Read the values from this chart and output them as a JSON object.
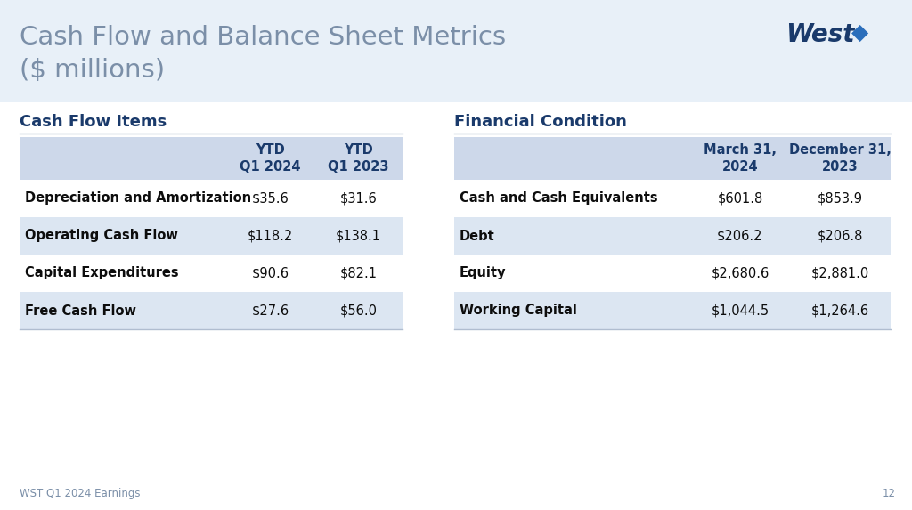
{
  "title_line1": "Cash Flow and Balance Sheet Metrics",
  "title_line2": "($ millions)",
  "title_color": "#7b8fa8",
  "title_fontsize": 21,
  "bg_color": "#ffffff",
  "slide_bg": "#ffffff",
  "cf_section_title": "Cash Flow Items",
  "cf_col1_header": "YTD\nQ1 2024",
  "cf_col2_header": "YTD\nQ1 2023",
  "cf_rows": [
    [
      "Depreciation and Amortization",
      "$35.6",
      "$31.6"
    ],
    [
      "Operating Cash Flow",
      "$118.2",
      "$138.1"
    ],
    [
      "Capital Expenditures",
      "$90.6",
      "$82.1"
    ],
    [
      "Free Cash Flow",
      "$27.6",
      "$56.0"
    ]
  ],
  "fc_section_title": "Financial Condition",
  "fc_col1_header": "March 31,\n2024",
  "fc_col2_header": "December 31,\n2023",
  "fc_rows": [
    [
      "Cash and Cash Equivalents",
      "$601.8",
      "$853.9"
    ],
    [
      "Debt",
      "$206.2",
      "$206.8"
    ],
    [
      "Equity",
      "$2,680.6",
      "$2,881.0"
    ],
    [
      "Working Capital",
      "$1,044.5",
      "$1,264.6"
    ]
  ],
  "section_title_color": "#1a3a6b",
  "section_title_fontsize": 13,
  "header_color": "#cdd8ea",
  "header_text_color": "#1a3a6b",
  "header_fontsize": 10.5,
  "row_odd_color": "#ffffff",
  "row_even_color": "#dce6f2",
  "row_text_color": "#0d0d0d",
  "row_label_fontsize": 10.5,
  "row_value_fontsize": 10.5,
  "divider_color": "#b0bdd0",
  "footer_text": "WST Q1 2024 Earnings",
  "footer_page": "12",
  "footer_color": "#7b8fa8",
  "footer_fontsize": 8.5,
  "logo_text": "West",
  "logo_icon": "◆",
  "logo_color": "#1a3a6b",
  "logo_icon_color": "#2a6ebb"
}
